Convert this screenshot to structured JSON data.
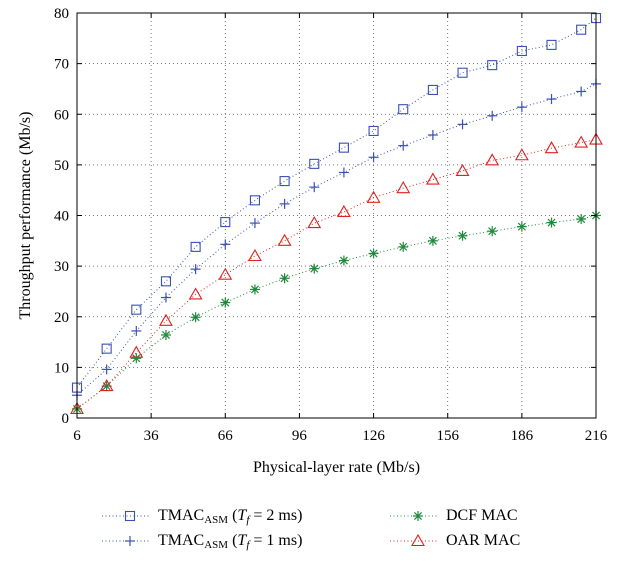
{
  "chart_data": {
    "type": "line",
    "xlabel": "Physical-layer rate (Mb/s)",
    "ylabel": "Throughput performance (Mb/s)",
    "xlim": [
      6,
      216
    ],
    "ylim": [
      0,
      80
    ],
    "xticks": [
      6,
      36,
      66,
      96,
      126,
      156,
      186,
      216
    ],
    "yticks": [
      0,
      10,
      20,
      30,
      40,
      50,
      60,
      70,
      80
    ],
    "grid": true,
    "legend_position": "bottom",
    "x": [
      6,
      18,
      30,
      42,
      54,
      66,
      78,
      90,
      102,
      114,
      126,
      138,
      150,
      162,
      174,
      186,
      198,
      210,
      216
    ],
    "series": [
      {
        "name": "TMAC_ASM (T_f = 2 ms)",
        "legend": {
          "main": "TMAC",
          "sub": "ASM",
          "param": "T",
          "param_sub": "f",
          "rest": " = 2 ms)"
        },
        "color": "#3a50b4",
        "marker": "square",
        "values": [
          6,
          13.7,
          21.4,
          27,
          33.8,
          38.7,
          43,
          46.8,
          50.2,
          53.4,
          56.7,
          61,
          64.8,
          68.2,
          69.7,
          72.5,
          73.7,
          76.7,
          79
        ]
      },
      {
        "name": "TMAC_ASM (T_f = 1 ms)",
        "legend": {
          "main": "TMAC",
          "sub": "ASM",
          "param": "T",
          "param_sub": "f",
          "rest": " = 1 ms)"
        },
        "color": "#3a50b4",
        "marker": "plus",
        "values": [
          4.5,
          9.6,
          17.2,
          23.8,
          29.4,
          34.3,
          38.5,
          42.3,
          45.6,
          48.5,
          51.5,
          53.8,
          55.9,
          58,
          59.7,
          61.4,
          63,
          64.5,
          66
        ]
      },
      {
        "name": "DCF MAC",
        "color": "#1e8a3a",
        "marker": "asterisk",
        "values": [
          1.8,
          6.3,
          11.8,
          16.4,
          19.9,
          22.8,
          25.4,
          27.6,
          29.5,
          31.1,
          32.5,
          33.8,
          35,
          36,
          36.9,
          37.8,
          38.6,
          39.3,
          40
        ]
      },
      {
        "name": "OAR MAC",
        "color": "#dd2222",
        "marker": "triangle",
        "values": [
          1.8,
          6.3,
          12.9,
          19.2,
          24.4,
          28.3,
          32,
          35,
          38.5,
          40.7,
          43.5,
          45.4,
          47.1,
          48.8,
          50.9,
          51.9,
          53.3,
          54.4,
          55
        ]
      }
    ]
  }
}
